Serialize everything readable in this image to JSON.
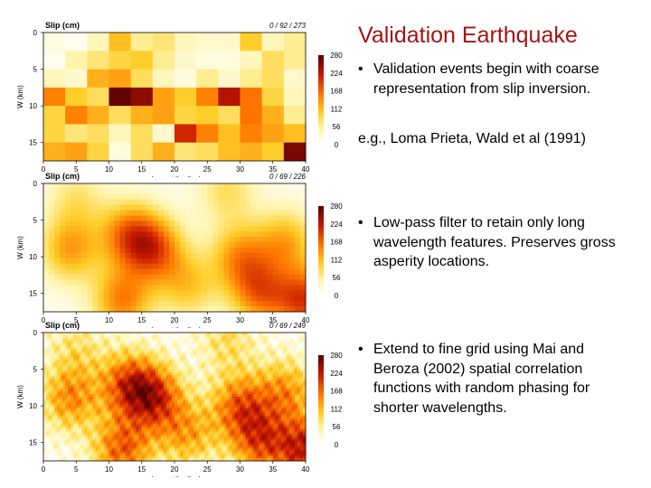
{
  "slide": {
    "title": "Validation Earthquake",
    "bullets": [
      "Validation events begin with coarse representation from slip inversion.",
      "Low-pass filter to retain only long wavelength features.  Preserves gross asperity locations.",
      "Extend to fine grid using Mai and Beroza (2002) spatial correlation functions with random phasing for shorter wavelengths."
    ],
    "subline": "e.g., Loma Prieta, Wald et al (1991)"
  },
  "panels": [
    {
      "label": "Slip (cm)",
      "stats": "0 / 92 / 273",
      "style": "coarse"
    },
    {
      "label": "Slip (cm)",
      "stats": "0 / 69 / 226",
      "style": "smooth"
    },
    {
      "label": "Slip (cm)",
      "stats": "0 / 69 / 249",
      "style": "fine"
    }
  ],
  "axes": {
    "ylabel": "W (km)",
    "xlabel": "along strike (km)",
    "yticks": [
      "0",
      "5",
      "10",
      "15"
    ],
    "xticks": [
      "0",
      "5",
      "10",
      "15",
      "20",
      "25",
      "30",
      "35",
      "40"
    ],
    "colorbar_ticks": [
      "280",
      "224",
      "168",
      "112",
      "56",
      "0"
    ]
  },
  "colors": {
    "title": "#a31515",
    "dark": "#5a0000",
    "red": "#c81800",
    "orange": "#ff8000",
    "yellow": "#ffe000",
    "white": "#ffffff"
  },
  "chart_data": [
    {
      "type": "heatmap",
      "title": "Slip (cm)",
      "annotation": "0 / 92 / 273",
      "xlabel": "along strike (km)",
      "ylabel": "W (km)",
      "xlim": [
        0,
        40
      ],
      "ylim": [
        0,
        17.5
      ],
      "colorbar": {
        "range": [
          0,
          280
        ],
        "ticks": [
          280,
          224,
          168,
          112,
          56,
          0
        ]
      },
      "cols": 12,
      "rows": 7,
      "values": [
        [
          20,
          10,
          40,
          110,
          60,
          70,
          40,
          30,
          30,
          100,
          40,
          60
        ],
        [
          10,
          50,
          70,
          90,
          100,
          60,
          30,
          20,
          20,
          40,
          80,
          60
        ],
        [
          40,
          30,
          120,
          130,
          80,
          40,
          20,
          60,
          30,
          60,
          80,
          30
        ],
        [
          150,
          100,
          80,
          273,
          250,
          130,
          100,
          150,
          230,
          160,
          90,
          40
        ],
        [
          90,
          150,
          120,
          80,
          120,
          130,
          90,
          100,
          80,
          160,
          120,
          60
        ],
        [
          90,
          70,
          80,
          40,
          80,
          30,
          210,
          150,
          110,
          150,
          130,
          110
        ],
        [
          120,
          130,
          90,
          20,
          80,
          120,
          70,
          80,
          110,
          120,
          100,
          260
        ]
      ]
    },
    {
      "type": "heatmap",
      "title": "Slip (cm)",
      "annotation": "0 / 69 / 226",
      "xlabel": "along strike (km)",
      "ylabel": "W (km)",
      "xlim": [
        0,
        40
      ],
      "ylim": [
        0,
        17.5
      ],
      "colorbar": {
        "range": [
          0,
          280
        ],
        "ticks": [
          280,
          224,
          168,
          112,
          56,
          0
        ]
      },
      "peaks": [
        [
          5,
          2,
          60
        ],
        [
          28,
          1,
          70
        ],
        [
          13,
          7,
          140
        ],
        [
          17,
          9,
          150
        ],
        [
          4,
          9,
          120
        ],
        [
          30,
          10,
          120
        ],
        [
          37,
          8,
          110
        ],
        [
          22,
          14,
          90
        ],
        [
          12,
          16,
          140
        ],
        [
          33,
          15,
          140
        ],
        [
          40,
          16,
          180
        ]
      ]
    },
    {
      "type": "heatmap",
      "title": "Slip (cm)",
      "annotation": "0 / 69 / 249",
      "xlabel": "along strike (km)",
      "ylabel": "W (km)",
      "xlim": [
        0,
        40
      ],
      "ylim": [
        0,
        17.5
      ],
      "colorbar": {
        "range": [
          0,
          280
        ],
        "ticks": [
          280,
          224,
          168,
          112,
          56,
          0
        ]
      },
      "peaks": [
        [
          5,
          2,
          60
        ],
        [
          28,
          1,
          70
        ],
        [
          13,
          7,
          160
        ],
        [
          17,
          9,
          170
        ],
        [
          4,
          9,
          130
        ],
        [
          30,
          10,
          150
        ],
        [
          37,
          8,
          120
        ],
        [
          22,
          14,
          110
        ],
        [
          12,
          16,
          160
        ],
        [
          33,
          15,
          150
        ],
        [
          40,
          16,
          200
        ]
      ]
    }
  ]
}
